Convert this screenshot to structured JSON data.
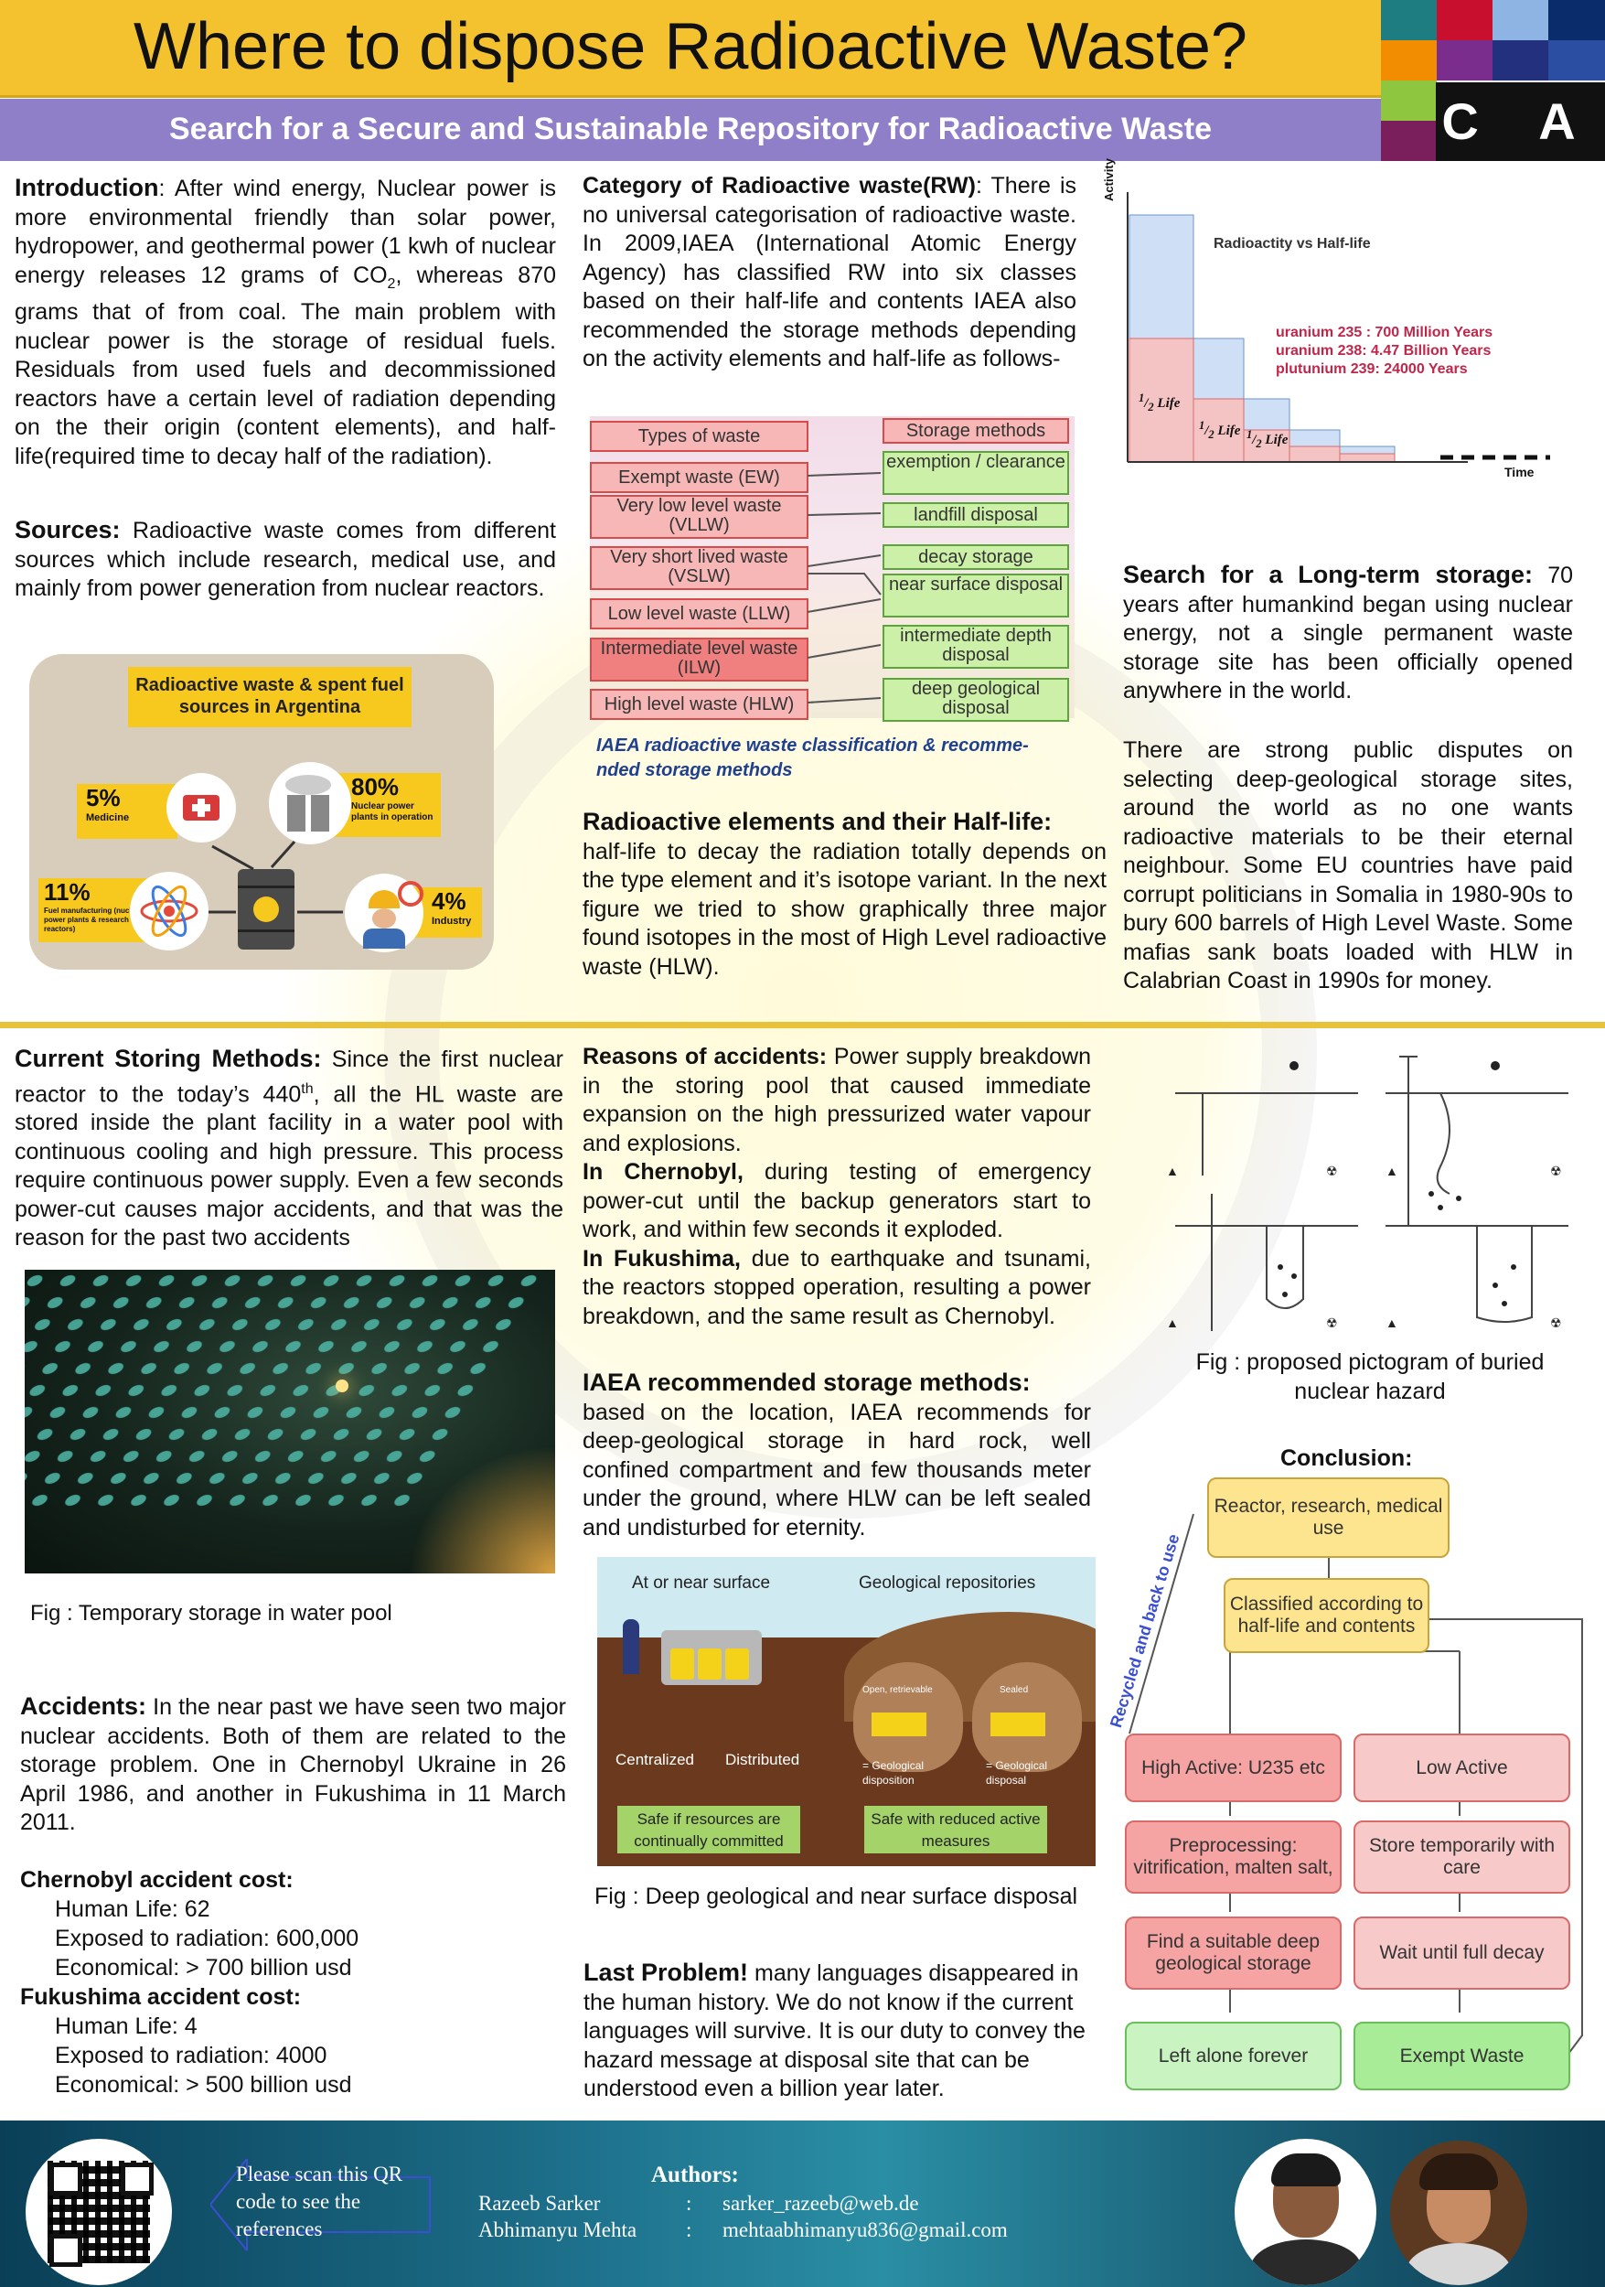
{
  "header": {
    "title": "Where to dispose Radioactive Waste?",
    "subtitle": "Search for a Secure and Sustainable Repository for Radioactive Waste",
    "logo_text": "C A U",
    "logo_colors": [
      "#1e7d80",
      "#c8102e",
      "#8db4e2",
      "#0b2c6b",
      "#f28c00",
      "#7b2d8e",
      "#22307d",
      "#2b4ea2",
      "#8ec63f",
      "#e8e8e8",
      "#7a1f5c"
    ]
  },
  "intro": {
    "heading": "Introduction",
    "text_a": ": After wind energy, Nuclear power is more environmental friendly than solar power, hydropower, and geothermal power (1 kwh of nuclear energy releases 12 grams of CO",
    "sub": "2",
    "text_b": ", whereas 870 grams that of from coal. The main problem with nuclear power is the storage of residual fuels. Residuals from used fuels and decommissioned reactors have a certain level of radiation depending on the their origin (content elements), and half-life(required time to decay half of the radiation)."
  },
  "sources": {
    "heading": "Sources:",
    "text": " Radioactive waste comes from different sources which include research, medical use, and mainly from power generation from nuclear reactors.",
    "figure_title": "Radioactive waste & spent fuel sources in Argentina",
    "items": [
      {
        "pct": "5%",
        "label": "Medicine"
      },
      {
        "pct": "80%",
        "label": "Nuclear power plants in operation"
      },
      {
        "pct": "11%",
        "label": "Fuel manufacturing (nuclear power plants & research reactors)"
      },
      {
        "pct": "4%",
        "label": "Industry"
      }
    ]
  },
  "category": {
    "heading": "Category of Radioactive waste(RW)",
    "text": ": There is no universal categorisation of radioactive waste. In 2009,IAEA (International Atomic Energy Agency) has classified RW into six classes based on their half-life and contents IAEA also recommended the storage methods depending on the activity elements and half-life as follows-",
    "types_header": "Types of waste",
    "storage_header": "Storage methods",
    "types": [
      "Exempt waste (EW)",
      "Very low level waste (VLLW)",
      "Very short lived waste (VSLW)",
      "Low level waste (LLW)",
      "Intermediate level waste (ILW)",
      "High level waste (HLW)"
    ],
    "storages": [
      "exemption / clearance",
      "landfill disposal",
      "decay storage",
      "near surface disposal",
      "intermediate depth disposal",
      "deep geological disposal"
    ],
    "caption": "IAEA radioactive waste classification & recomme-nded storage methods"
  },
  "halflife": {
    "heading": "Radioactive elements and their Half-life:",
    "text": "half-life to decay the radiation totally depends on the type element and it’s isotope variant. In the next figure we tried to show graphically three major found isotopes in the most of High Level radioactive waste (HLW).",
    "chart_title": "Radioactity vs Half-life",
    "y_label": "Activity",
    "x_label": "Time",
    "isotopes": [
      "uranium 235 : 700 Million Years",
      "uranium 238: 4.47 Billion Years",
      "plutunium 239: 24000 Years"
    ],
    "step_label_num": "1",
    "step_label_den": "2",
    "step_label_word": "Life"
  },
  "search": {
    "heading": "Search for a Long-term storage:",
    "text1": " 70 years after humankind began using nuclear energy, not a single permanent waste storage site has been officially opened anywhere in the world.",
    "text2": "There are strong public disputes on selecting deep-geological storage sites, around the world as no one wants radioactive materials to be their eternal neighbour. Some EU countries have paid corrupt politicians in Somalia in 1980-90s to bury 600 barrels of High Level Waste. Some mafias sank boats loaded with HLW in Calabrian Coast in 1990s for money."
  },
  "current": {
    "heading": "Current Storing Methods:",
    "text_a": " Since the first nuclear reactor to the today’s 440",
    "sup": "th",
    "text_b": ", all the HL waste are stored inside the plant facility in a water pool with continuous cooling and high pressure. This process require continuous power supply. Even a few seconds power-cut causes major accidents, and that was the reason for the past two accidents",
    "caption": "Fig : Temporary storage in water pool"
  },
  "accidents": {
    "heading": "Accidents:",
    "text": " In the near past we have seen two major nuclear accidents. Both of them are related to the storage problem. One in Chernobyl Ukraine in 26 April 1986, and another in Fukushima in 11 March 2011.",
    "chernobyl_heading": "Chernobyl accident cost:",
    "chernobyl": [
      "Human Life: 62",
      "Exposed to radiation: 600,000",
      "Economical: > 700 billion usd"
    ],
    "fukushima_heading": "Fukushima accident cost:",
    "fukushima": [
      "Human Life: 4",
      "Exposed to radiation: 4000",
      "Economical: > 500 billion usd"
    ]
  },
  "reasons": {
    "heading": "Reasons of accidents:",
    "text": " Power supply breakdown in the storing pool that caused immediate expansion on the high pressurized water vapour and explosions.",
    "chernobyl_lead": "In Chernobyl,",
    "chernobyl_text": " during testing of emergency power-cut until the backup generators start to work, and within few seconds it exploded.",
    "fukushima_lead": "In Fukushima,",
    "fukushima_text": " due to earthquake and tsunami, the reactors stopped operation, resulting a power breakdown, and the same result as Chernobyl."
  },
  "iaea": {
    "heading": "IAEA recommended storage methods:",
    "text": "based on the location, IAEA recommends for deep-geological storage in hard rock, well confined compartment and few thousands meter under the ground, where HLW can be left sealed and undisturbed for eternity.",
    "fig_left_title": "At or near surface",
    "fig_right_title": "Geological repositories",
    "centralized": "Centralized",
    "distributed": "Distributed",
    "open_retrievable": "Open, retrievable",
    "sealed": "Sealed",
    "geo_disposition": "= Geological disposition",
    "geo_disposal": "= Geological disposal",
    "safe_left": "Safe if resources are continually committed",
    "safe_right": "Safe with reduced active measures",
    "caption": "Fig : Deep geological and near surface disposal"
  },
  "last": {
    "heading": "Last Problem!",
    "text": " many languages disappeared in the human history. We do not know if the current languages will survive. It is our duty to convey the hazard message at disposal site that can be understood even a billion year later."
  },
  "pictogram": {
    "caption": "Fig : proposed pictogram of buried nuclear hazard"
  },
  "conclusion": {
    "heading": "Conclusion:",
    "recycle": "Recycled and back to use",
    "nodes": {
      "source": "Reactor, research, medical use",
      "classify": "Classified according to half-life and contents",
      "high": "High Active: U235 etc",
      "low": "Low Active",
      "pre": "Preprocessing: vitrification, malten salt,",
      "store": "Store temporarily with care",
      "find": "Find a suitable deep geological storage",
      "wait": "Wait until full decay",
      "left": "Left alone forever",
      "exempt": "Exempt Waste"
    }
  },
  "footer": {
    "qr_note": "Please scan this QR code to see the references",
    "authors_heading": "Authors:",
    "authors": [
      {
        "name": "Razeeb Sarker",
        "sep": ":",
        "email": "sarker_razeeb@web.de"
      },
      {
        "name": "Abhimanyu Mehta",
        "sep": ":",
        "email": "mehtaabhimanyu836@gmail.com"
      }
    ]
  }
}
